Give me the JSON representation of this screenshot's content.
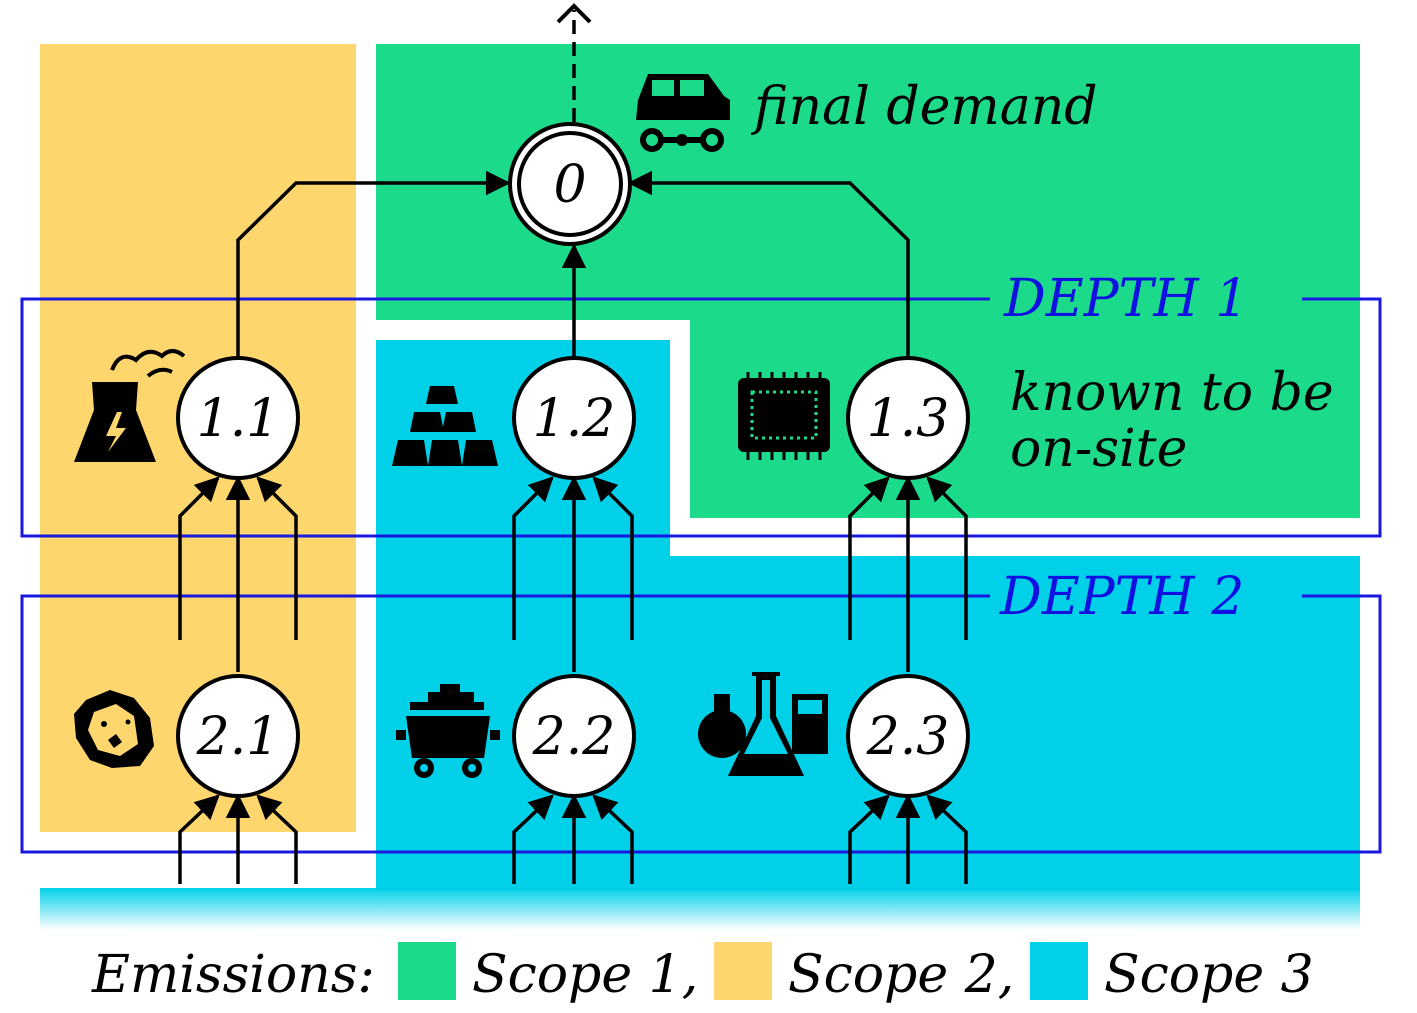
{
  "colors": {
    "scope1": "#1bdb8a",
    "scope2": "#fed66e",
    "scope3": "#00d0e8",
    "depth_frame": "#1818e0",
    "edge": "#000000"
  },
  "nodes": {
    "n0": "0",
    "n11": "1.1",
    "n12": "1.2",
    "n13": "1.3",
    "n21": "2.1",
    "n22": "2.2",
    "n23": "2.3"
  },
  "labels": {
    "final_demand": "final demand",
    "known_line1": "known to be",
    "known_line2": "on-site",
    "depth1": "DEPTH 1",
    "depth2": "DEPTH 2"
  },
  "icons": {
    "n0": "car-icon",
    "n11": "power-plant-icon",
    "n12": "gold-bars-icon",
    "n13": "microchip-icon",
    "n21": "ore-rock-icon",
    "n22": "mine-cart-icon",
    "n23": "chemistry-flasks-icon"
  },
  "legend": {
    "prefix": "Emissions:",
    "scope1": "Scope 1,",
    "scope2": "Scope 2,",
    "scope3": "Scope 3"
  }
}
